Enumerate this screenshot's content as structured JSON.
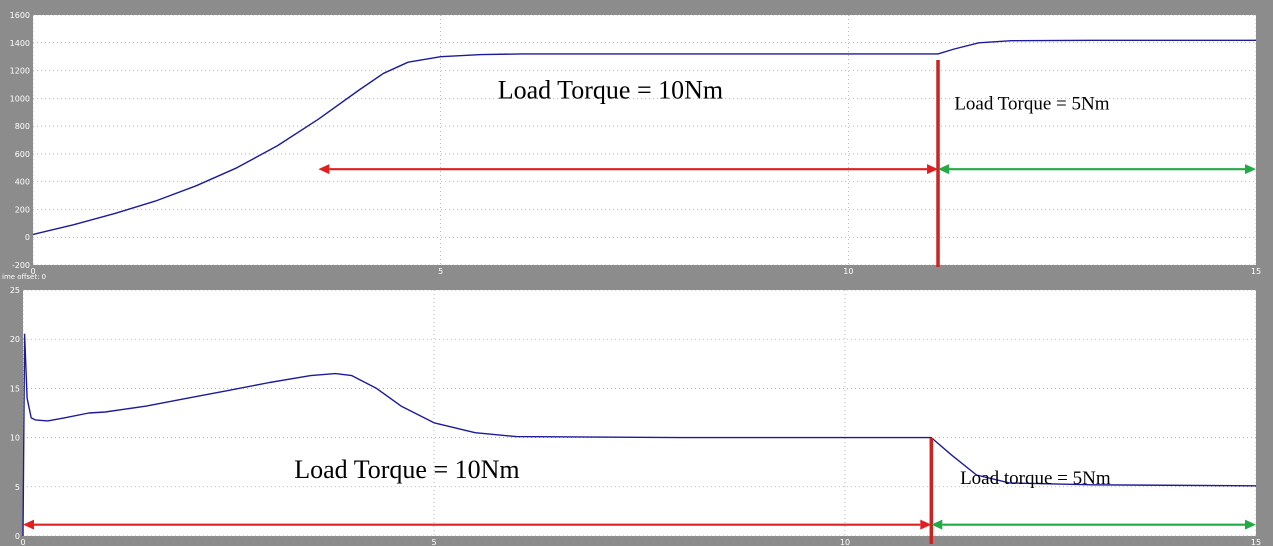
{
  "time_offset_label": "ime offset:  0",
  "colors": {
    "background": "#8c8c8c",
    "plot_bg": "#ffffff",
    "trace": "#1c1c9a",
    "grid": "#999999",
    "red": "#e02020",
    "dark_red": "#cc2222",
    "green": "#22aa44"
  },
  "chart_data": [
    {
      "type": "line",
      "title": "",
      "xlabel": "",
      "ylabel": "",
      "xlim": [
        0,
        15
      ],
      "ylim": [
        -200,
        1600
      ],
      "x_ticks": [
        "0",
        "5",
        "10",
        "15"
      ],
      "y_ticks": [
        "-200",
        "0",
        "200",
        "400",
        "600",
        "800",
        "1000",
        "1200",
        "1400",
        "1600"
      ],
      "grid": true,
      "series": [
        {
          "x": [
            0,
            0.5,
            1,
            1.5,
            2,
            2.5,
            3,
            3.5,
            4,
            4.3,
            4.6,
            5,
            5.5,
            6,
            8,
            10,
            11.1,
            11.3,
            11.6,
            12,
            13,
            15
          ],
          "y": [
            20,
            90,
            170,
            260,
            370,
            500,
            660,
            850,
            1060,
            1180,
            1260,
            1300,
            1315,
            1320,
            1320,
            1320,
            1320,
            1355,
            1400,
            1415,
            1418,
            1418
          ]
        }
      ],
      "annotations": [
        {
          "text": "Load Torque = 10Nm",
          "x": 5.7,
          "y": 1000,
          "size": "large"
        },
        {
          "text": "Load Torque = 5Nm",
          "x": 11.3,
          "y": 920,
          "size": "small"
        }
      ],
      "step_time": 11.1,
      "arrows": [
        {
          "from": 3.5,
          "to": 11.1,
          "y": 490,
          "color": "red"
        },
        {
          "from": 11.1,
          "to": 15,
          "y": 490,
          "color": "green"
        }
      ]
    },
    {
      "type": "line",
      "title": "",
      "xlabel": "",
      "ylabel": "",
      "xlim": [
        0,
        15
      ],
      "ylim": [
        0,
        25
      ],
      "x_ticks": [
        "0",
        "5",
        "10",
        "15"
      ],
      "y_ticks": [
        "0",
        "5",
        "10",
        "15",
        "20",
        "25"
      ],
      "grid": true,
      "series": [
        {
          "x": [
            0,
            0.02,
            0.05,
            0.1,
            0.15,
            0.3,
            0.5,
            0.8,
            1,
            1.5,
            2,
            2.5,
            3,
            3.5,
            3.8,
            4,
            4.3,
            4.6,
            5,
            5.5,
            6,
            8,
            10,
            11.05,
            11.3,
            11.6,
            12,
            13,
            15
          ],
          "y": [
            0,
            20.5,
            14,
            12,
            11.8,
            11.7,
            12,
            12.5,
            12.6,
            13.2,
            14,
            14.8,
            15.6,
            16.3,
            16.5,
            16.3,
            15,
            13.2,
            11.5,
            10.5,
            10.1,
            10,
            10,
            10,
            8.2,
            6.2,
            5.4,
            5.2,
            5.1
          ]
        }
      ],
      "annotations": [
        {
          "text": "Load Torque = 10Nm",
          "x": 3.3,
          "y": 5.9,
          "size": "large"
        },
        {
          "text": "Load torque = 5Nm",
          "x": 11.4,
          "y": 5.3,
          "size": "small"
        }
      ],
      "step_time": 11.05,
      "arrows": [
        {
          "from": 0,
          "to": 11.05,
          "y": 1.15,
          "color": "red"
        },
        {
          "from": 11.05,
          "to": 15,
          "y": 1.15,
          "color": "green"
        }
      ]
    }
  ]
}
